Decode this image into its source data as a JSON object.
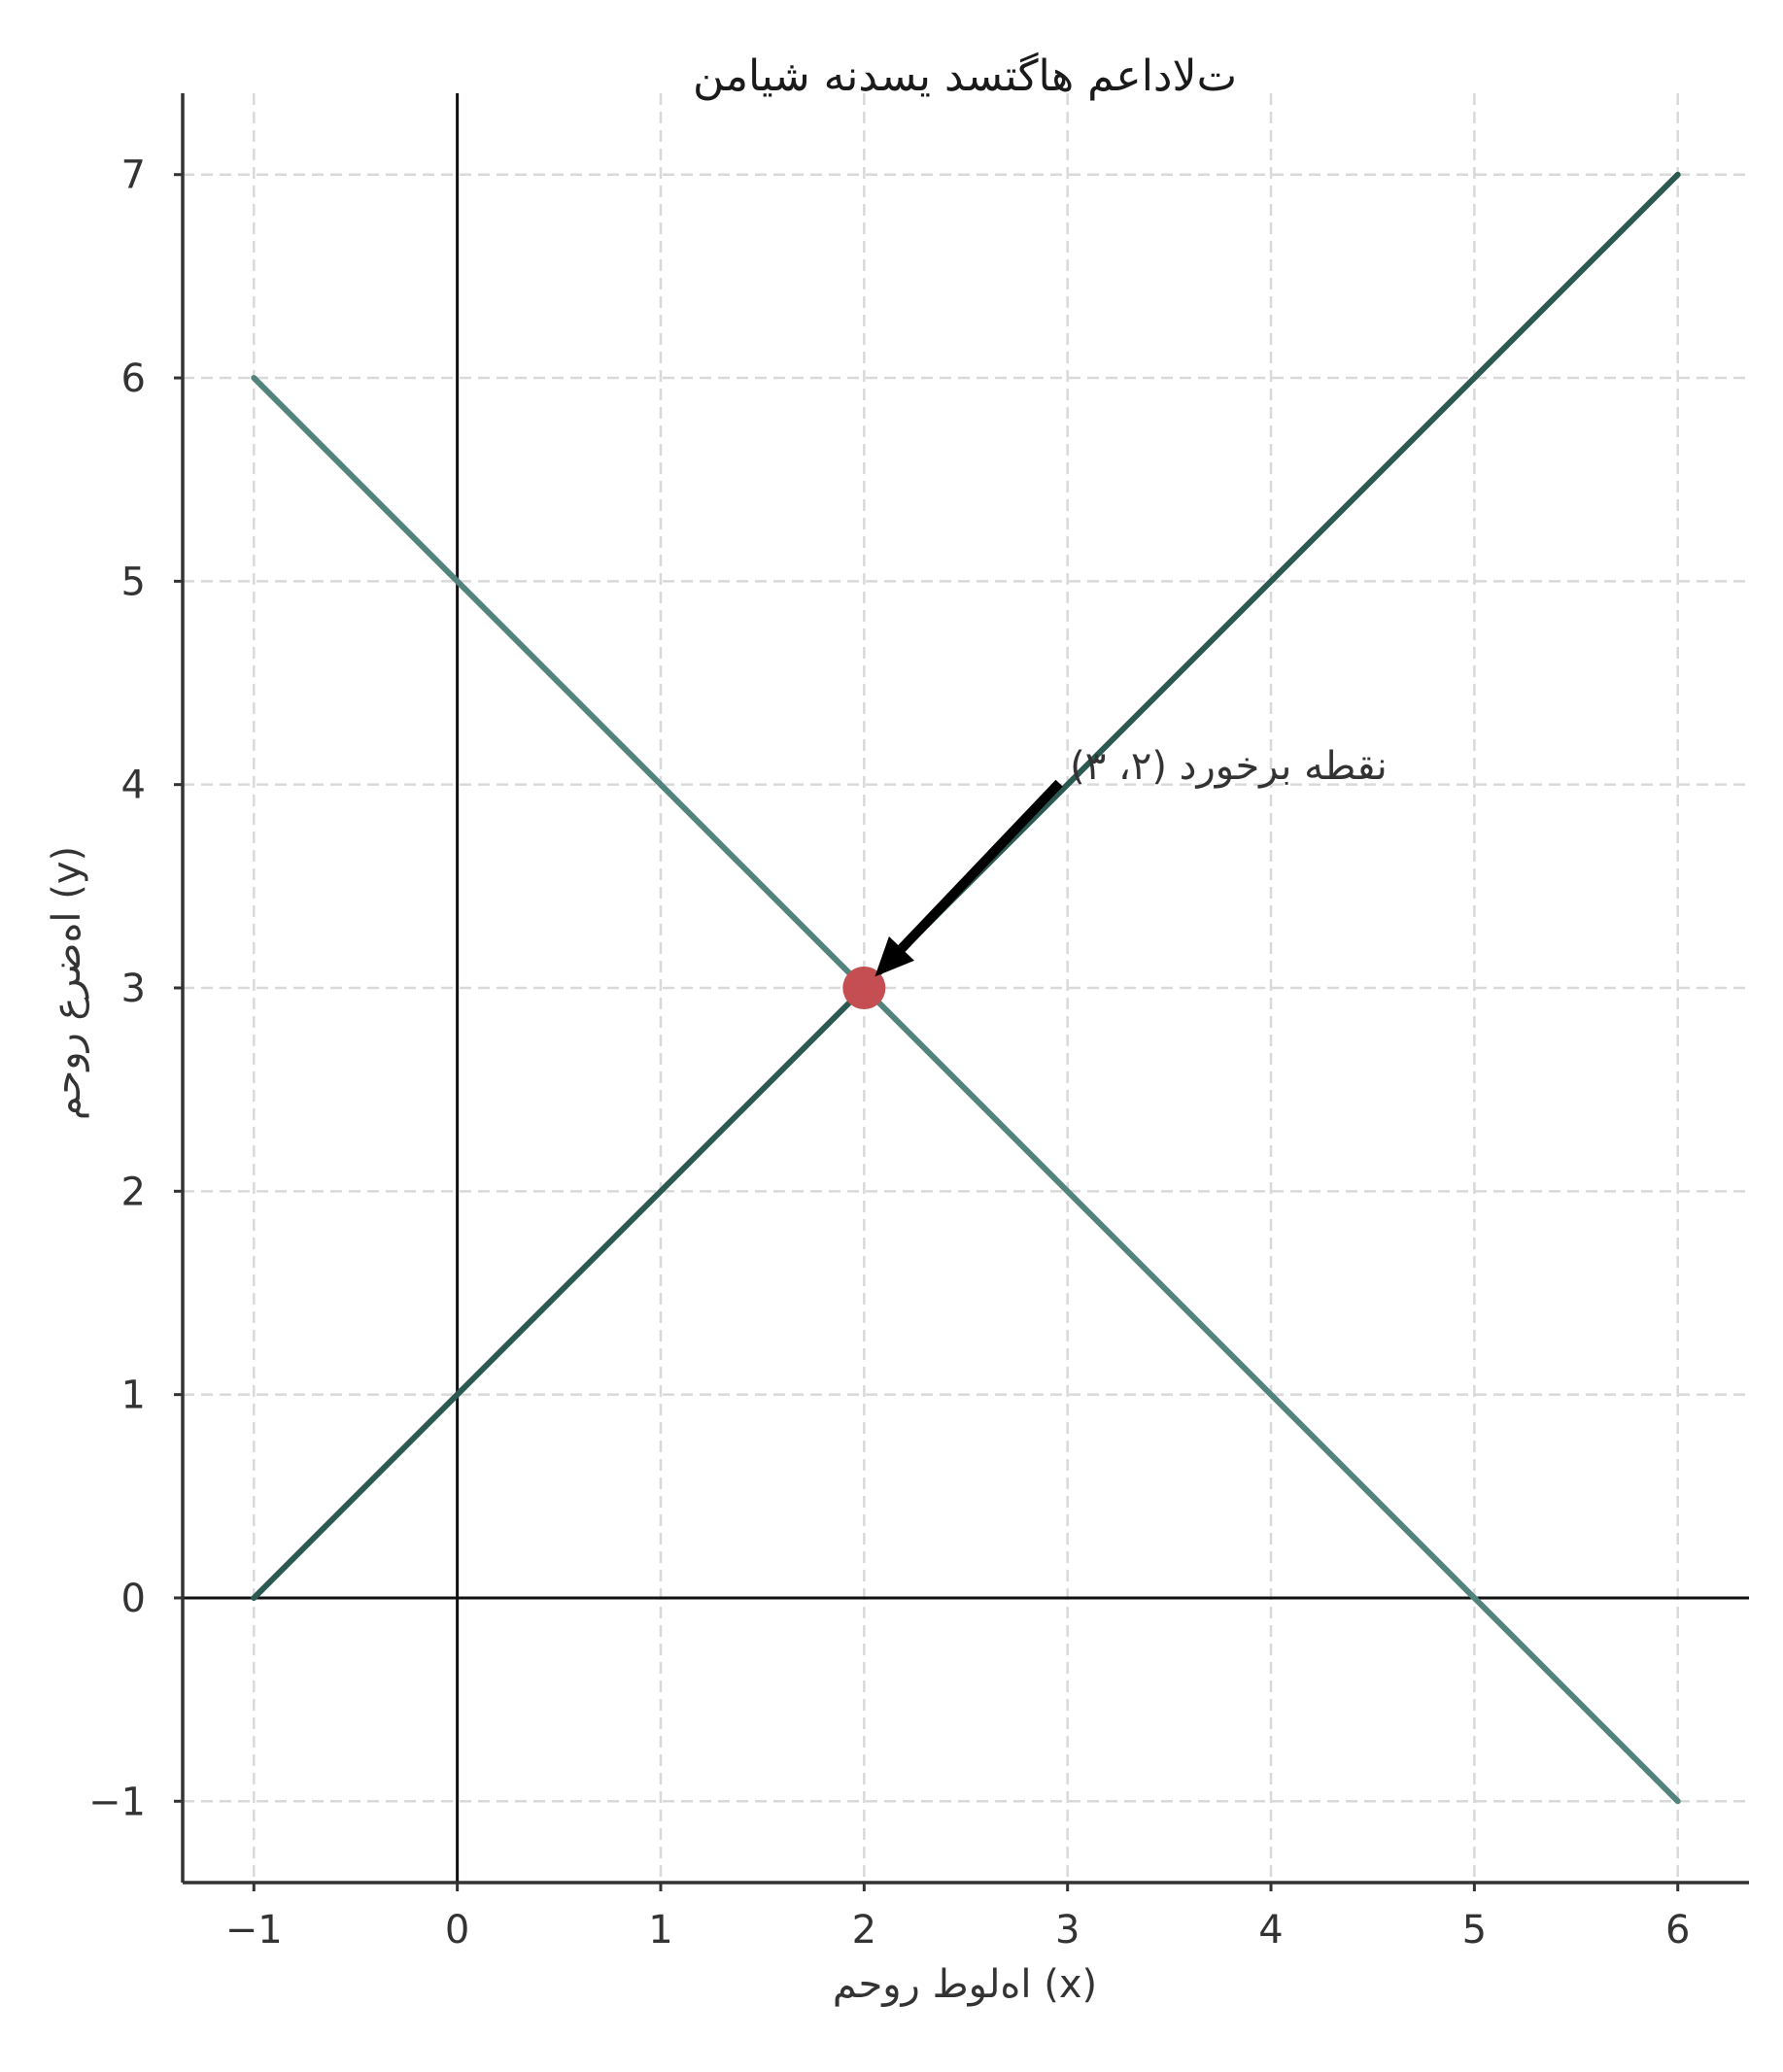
{
  "chart_data": {
    "type": "line",
    "title": "ت‌لاداعم هاگتسد یسدنه شیامن",
    "xlabel": "اه‌لوط روحم (x)",
    "ylabel": "اه‌ضرع روحم (y)",
    "xlim": [
      -1.35,
      6.35
    ],
    "ylim": [
      -1.4,
      7.4
    ],
    "xticks": [
      -1,
      0,
      1,
      2,
      3,
      4,
      5,
      6
    ],
    "yticks": [
      -1,
      0,
      1,
      2,
      3,
      4,
      5,
      6,
      7
    ],
    "xtick_labels": [
      "−1",
      "0",
      "1",
      "2",
      "3",
      "4",
      "5",
      "6"
    ],
    "ytick_labels": [
      "−1",
      "0",
      "1",
      "2",
      "3",
      "4",
      "5",
      "6",
      "7"
    ],
    "grid": true,
    "reference_lines": {
      "x": 0,
      "y": 0
    },
    "series": [
      {
        "x": [
          -1,
          0,
          1,
          2,
          3,
          4,
          5,
          6
        ],
        "y": [
          0,
          1,
          2,
          3,
          4,
          5,
          6,
          7
        ],
        "color": "#2c5a52"
      },
      {
        "x": [
          -1,
          0,
          1,
          2,
          3,
          4,
          5,
          6
        ],
        "y": [
          6,
          5,
          4,
          3,
          2,
          1,
          0,
          -1
        ],
        "color": "#52837c"
      }
    ],
    "points": [
      {
        "x": 2,
        "y": 3,
        "color": "#c44e52"
      }
    ],
    "annotations": [
      {
        "text": "نقطه برخورد (۲، ۳)",
        "point": [
          2,
          3
        ],
        "text_at": [
          3.05,
          4.05
        ]
      }
    ]
  }
}
